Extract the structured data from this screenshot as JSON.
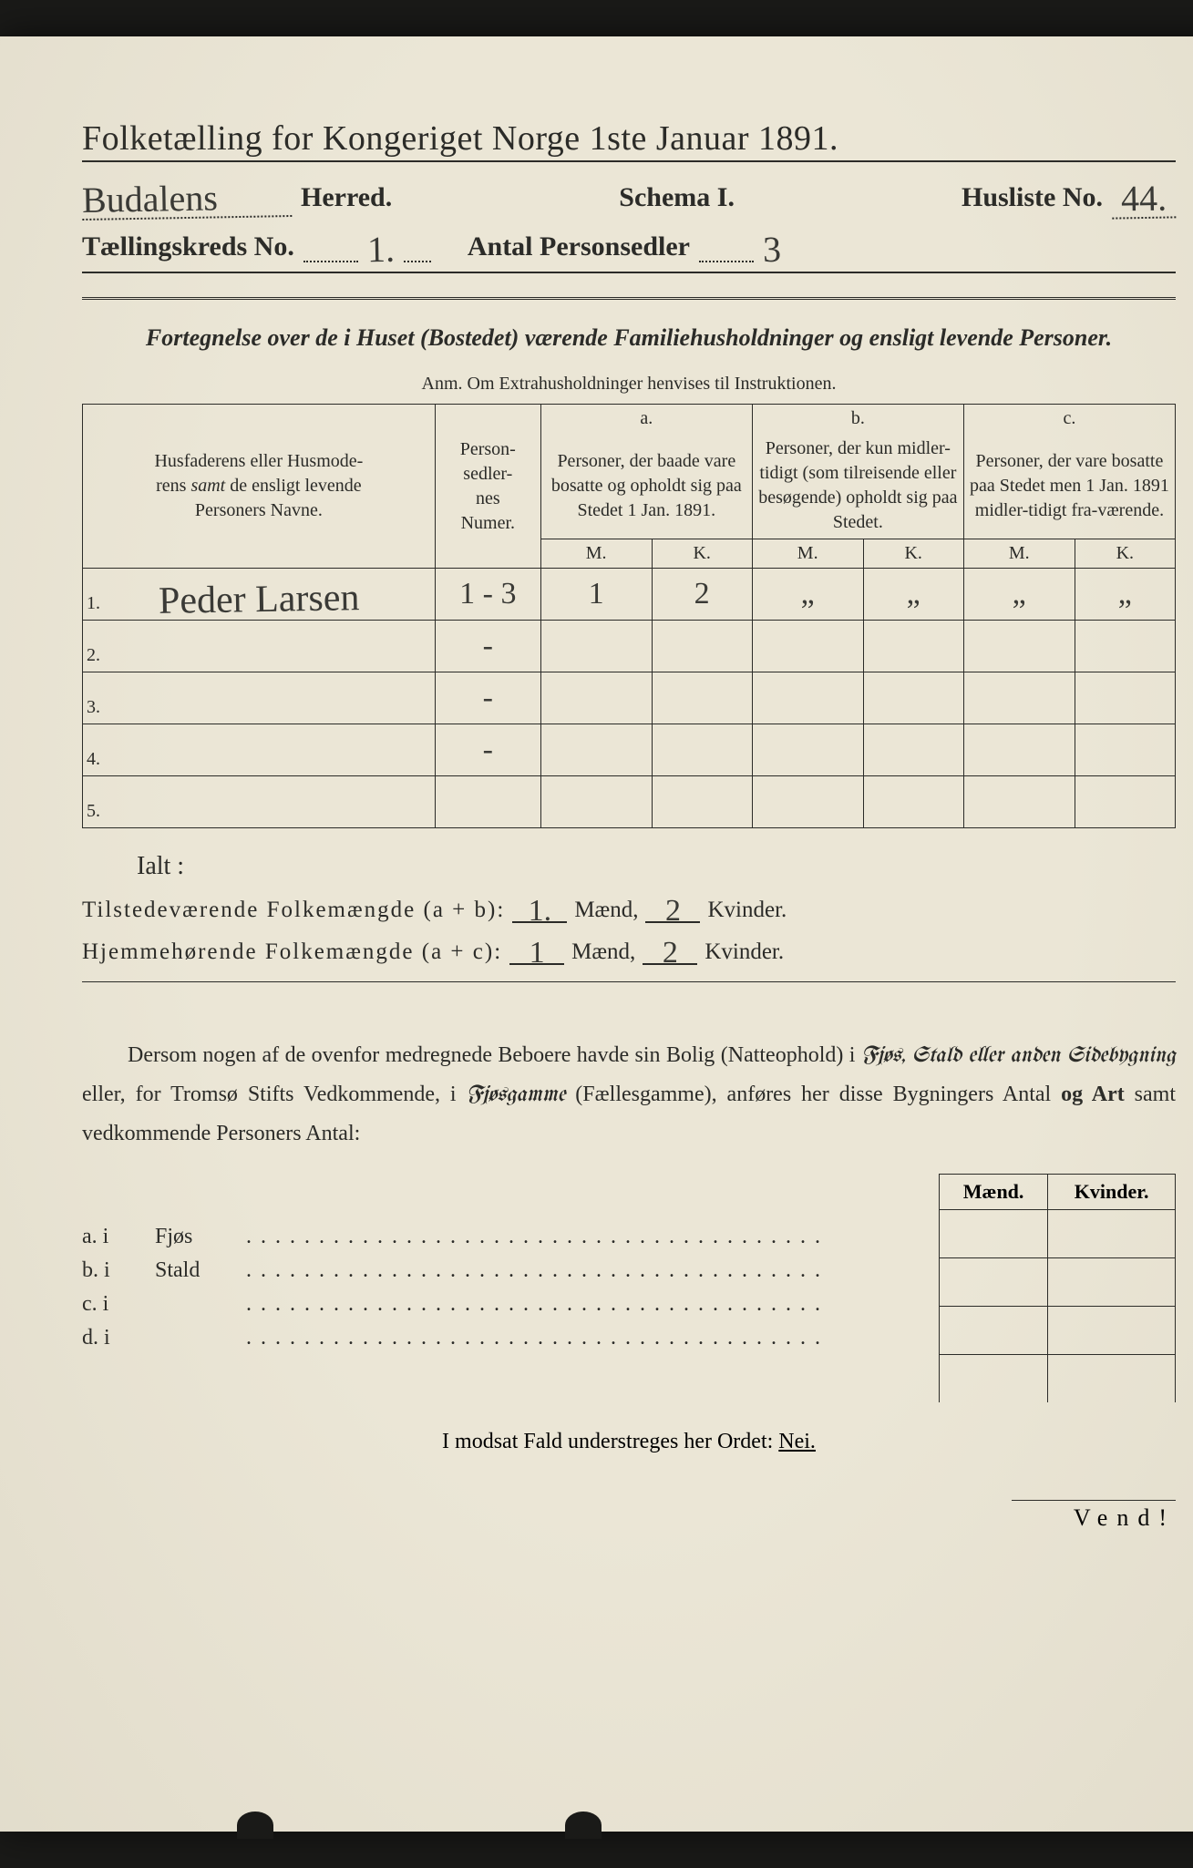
{
  "colors": {
    "paper": "#ebe6d6",
    "ink": "#2b2b28",
    "handwriting": "#3a3a36",
    "background": "#1a1a18"
  },
  "typography": {
    "title_fontsize": 38,
    "body_fontsize": 24,
    "handwriting_fontsize": 40,
    "table_fontsize": 20
  },
  "header": {
    "title": "Folketælling for Kongeriget Norge 1ste Januar 1891.",
    "herred_hw": "Budalens",
    "herred_label": "Herred.",
    "schema_label": "Schema I.",
    "husliste_label": "Husliste No.",
    "husliste_hw": "44.",
    "kreds_label": "Tællingskreds No.",
    "kreds_hw": "1.",
    "antal_label": "Antal Personsedler",
    "antal_hw": "3"
  },
  "subtitle": {
    "line": "Fortegnelse over de i Huset (Bostedet) værende Familiehusholdninger og ensligt levende Personer.",
    "anm": "Anm.  Om Extrahusholdninger henvises til Instruktionen."
  },
  "table": {
    "type": "table",
    "col_name": "Husfaderens eller Husmoderens samt de ensligt levende Personers Navne.",
    "col_num": "Person-\nsedler-\nnes\nNumer.",
    "col_a_top": "a.",
    "col_a": "Personer, der baade vare bosatte og opholdt sig paa Stedet 1 Jan. 1891.",
    "col_b_top": "b.",
    "col_b": "Personer, der kun midler-tidigt (som tilreisende eller besøgende) opholdt sig paa Stedet.",
    "col_c_top": "c.",
    "col_c": "Personer, der vare bosatte paa Stedet men 1 Jan. 1891 midler-tidigt fra-værende.",
    "m": "M.",
    "k": "K.",
    "rows": [
      {
        "n": "1.",
        "name_hw": "Peder Larsen",
        "num_hw": "1 - 3",
        "a_m": "1",
        "a_k": "2",
        "b_m": "„",
        "b_k": "„",
        "c_m": "„",
        "c_k": "„"
      },
      {
        "n": "2.",
        "name_hw": "",
        "num_hw": "-",
        "a_m": "",
        "a_k": "",
        "b_m": "",
        "b_k": "",
        "c_m": "",
        "c_k": ""
      },
      {
        "n": "3.",
        "name_hw": "",
        "num_hw": "-",
        "a_m": "",
        "a_k": "",
        "b_m": "",
        "b_k": "",
        "c_m": "",
        "c_k": ""
      },
      {
        "n": "4.",
        "name_hw": "",
        "num_hw": "-",
        "a_m": "",
        "a_k": "",
        "b_m": "",
        "b_k": "",
        "c_m": "",
        "c_k": ""
      },
      {
        "n": "5.",
        "name_hw": "",
        "num_hw": "",
        "a_m": "",
        "a_k": "",
        "b_m": "",
        "b_k": "",
        "c_m": "",
        "c_k": ""
      }
    ]
  },
  "totals": {
    "ialt": "Ialt :",
    "line1_label": "Tilstedeværende  Folkemængde (a + b):",
    "line2_label": "Hjemmehørende  Folkemængde (a + c):",
    "maend": "Mænd,",
    "kvinder": "Kvinder.",
    "l1_m": "1.",
    "l1_k": "2",
    "l2_m": "1",
    "l2_k": "2"
  },
  "paragraph": "Dersom nogen af de ovenfor medregnede Beboere havde sin Bolig (Natteophold) i Fjøs, Stald eller anden Sidebygning eller, for Tromsø Stifts Vedkommende, i Fjøsgamme (Fællesgamme), anføres her disse Bygningers Antal og Art samt vedkommende Personers Antal:",
  "bldg_header": {
    "m": "Mænd.",
    "k": "Kvinder."
  },
  "bldg_rows": [
    {
      "idx": "a.  i",
      "label": "Fjøs"
    },
    {
      "idx": "b.  i",
      "label": "Stald"
    },
    {
      "idx": "c.  i",
      "label": ""
    },
    {
      "idx": "d.  i",
      "label": ""
    }
  ],
  "nei": "I modsat Fald understreges her Ordet:",
  "nei_word": "Nei.",
  "vend": "Vend!"
}
